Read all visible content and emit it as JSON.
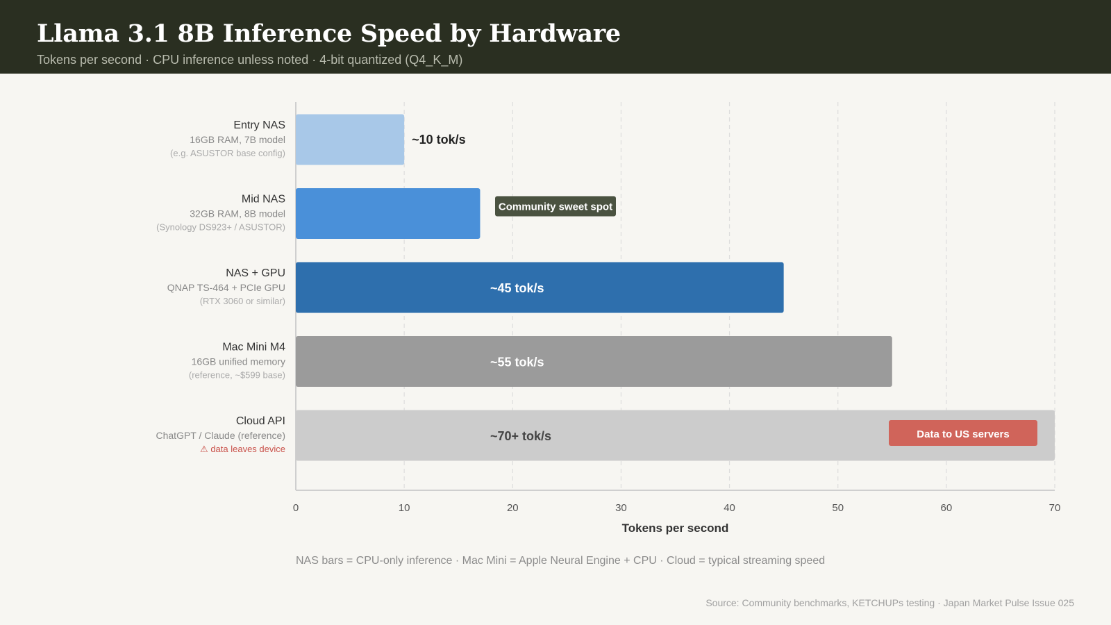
{
  "header": {
    "title": "Llama 3.1 8B Inference Speed by Hardware",
    "subtitle": "Tokens per second · CPU inference unless noted · 4-bit quantized (Q4_K_M)"
  },
  "footer": {
    "note": "NAS bars = CPU-only inference · Mac Mini = Apple Neural Engine + CPU · Cloud = typical streaming speed",
    "source": "Source: Community benchmarks, KETCHUPs testing · Japan Market Pulse Issue 025"
  },
  "chart_data": {
    "type": "bar",
    "orientation": "horizontal",
    "title": "Llama 3.1 8B Inference Speed by Hardware",
    "subtitle": "Tokens per second · CPU inference unless noted · 4-bit quantized (Q4_K_M)",
    "xlabel": "Tokens per second",
    "ylabel": "",
    "xlim": [
      0,
      70
    ],
    "xticks": [
      0,
      10,
      20,
      30,
      40,
      50,
      60,
      70
    ],
    "grid": true,
    "categories": [
      {
        "name": "Entry NAS",
        "detail": "16GB RAM, 7B model",
        "note": "(e.g. ASUSTOR base config)",
        "value": 10,
        "label": "~10 tok/s",
        "color": "#a8c8e8",
        "label_color": "#222222",
        "label_position": "outside"
      },
      {
        "name": "Mid NAS",
        "detail": "32GB RAM, 8B model",
        "note": "(Synology DS923+ / ASUSTOR)",
        "value": 17,
        "label": "",
        "color": "#4a90d9",
        "badge": "Community sweet spot",
        "badge_color": "#4a5240"
      },
      {
        "name": "NAS + GPU",
        "detail": "QNAP TS-464 + PCIe GPU",
        "note": "(RTX 3060 or similar)",
        "value": 45,
        "label": "~45 tok/s",
        "color": "#2e6fad",
        "label_color": "#ffffff",
        "label_position": "inside"
      },
      {
        "name": "Mac Mini M4",
        "detail": "16GB unified memory",
        "note": "(reference, ~$599 base)",
        "value": 55,
        "label": "~55 tok/s",
        "color": "#9b9b9b",
        "label_color": "#ffffff",
        "label_position": "inside"
      },
      {
        "name": "Cloud API",
        "detail": "ChatGPT / Claude (reference)",
        "note": "⚠ data leaves device",
        "note_warning": true,
        "value": 70,
        "label": "~70+ tok/s",
        "color": "#cccccc",
        "label_color": "#444444",
        "label_position": "inside",
        "badge": "Data to US servers",
        "badge_color": "#d0645a"
      }
    ]
  }
}
